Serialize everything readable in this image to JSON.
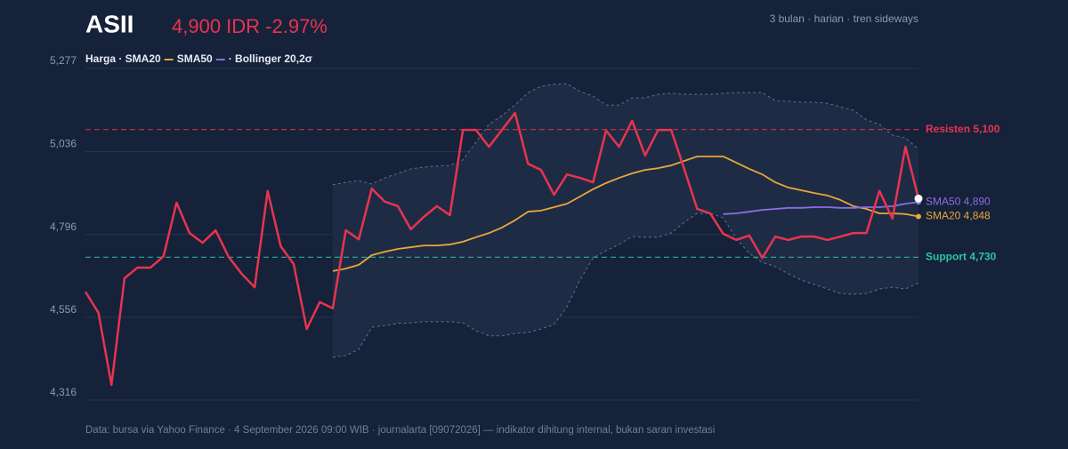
{
  "chart_data": {
    "type": "line",
    "title": "ASII",
    "headline": "4,900 IDR -2.97%",
    "subtitle": "3 bulan · harian · tren sideways",
    "legend_items": [
      "Harga · SMA20",
      "SMA50",
      "· Bollinger 20,2σ"
    ],
    "footer": "Data: bursa via Yahoo Finance · 4 September 2026 09:00 WIB · journalarta [09072026] — indikator dihitung internal, bukan saran investasi",
    "ylim": [
      4316,
      5277
    ],
    "yticks": [
      {
        "value": 4316,
        "label": "4,316"
      },
      {
        "value": 4556,
        "label": "4,556"
      },
      {
        "value": 4796,
        "label": "4,796"
      },
      {
        "value": 5036,
        "label": "5,036"
      },
      {
        "value": 5277,
        "label": "5,277"
      }
    ],
    "grid": true,
    "series": [
      {
        "name": "Harga",
        "color": "#e8344e",
        "values": [
          4630,
          4569,
          4360,
          4669,
          4700,
          4700,
          4733,
          4888,
          4800,
          4772,
          4808,
          4731,
          4682,
          4643,
          4922,
          4762,
          4710,
          4522,
          4600,
          4582,
          4808,
          4782,
          4929,
          4891,
          4878,
          4811,
          4847,
          4878,
          4852,
          5099,
          5099,
          5050,
          5099,
          5148,
          5001,
          4983,
          4911,
          4970,
          4960,
          4947,
          5097,
          5050,
          5125,
          5025,
          5099,
          5099,
          4986,
          4870,
          4857,
          4798,
          4780,
          4793,
          4728,
          4790,
          4780,
          4790,
          4790,
          4780,
          4790,
          4800,
          4800,
          4922,
          4842,
          5050,
          4900
        ]
      },
      {
        "name": "SMA20",
        "color": "#e8a838",
        "end_label": "SMA20 4,848",
        "values": [
          null,
          null,
          null,
          null,
          null,
          null,
          null,
          null,
          null,
          null,
          null,
          null,
          null,
          null,
          null,
          null,
          null,
          null,
          null,
          4690,
          4697,
          4708,
          4736,
          4746,
          4754,
          4759,
          4764,
          4764,
          4767,
          4775,
          4788,
          4800,
          4816,
          4837,
          4862,
          4865,
          4875,
          4885,
          4906,
          4927,
          4945,
          4960,
          4973,
          4983,
          4988,
          4996,
          5009,
          5022,
          5022,
          5022,
          5004,
          4986,
          4970,
          4947,
          4932,
          4924,
          4916,
          4909,
          4896,
          4878,
          4870,
          4857,
          4857,
          4855,
          4848
        ]
      },
      {
        "name": "SMA50",
        "color": "#8b6fe0",
        "end_label": "SMA50 4,890",
        "values": [
          null,
          null,
          null,
          null,
          null,
          null,
          null,
          null,
          null,
          null,
          null,
          null,
          null,
          null,
          null,
          null,
          null,
          null,
          null,
          null,
          null,
          null,
          null,
          null,
          null,
          null,
          null,
          null,
          null,
          null,
          null,
          null,
          null,
          null,
          null,
          null,
          null,
          null,
          null,
          null,
          null,
          null,
          null,
          null,
          null,
          null,
          null,
          null,
          null,
          4855,
          4857,
          4862,
          4867,
          4870,
          4873,
          4873,
          4875,
          4875,
          4873,
          4873,
          4875,
          4875,
          4878,
          4885,
          4890
        ]
      }
    ],
    "band": {
      "name": "Bollinger 20,2σ",
      "color": "#5a7196",
      "fill": "#1e2b45",
      "upper": [
        null,
        null,
        null,
        null,
        null,
        null,
        null,
        null,
        null,
        null,
        null,
        null,
        null,
        null,
        null,
        null,
        null,
        null,
        null,
        4940,
        4947,
        4952,
        4942,
        4960,
        4973,
        4986,
        4991,
        4994,
        4996,
        5012,
        5063,
        5115,
        5140,
        5171,
        5207,
        5225,
        5231,
        5233,
        5210,
        5197,
        5171,
        5171,
        5192,
        5192,
        5202,
        5205,
        5202,
        5202,
        5202,
        5205,
        5207,
        5207,
        5207,
        5184,
        5182,
        5179,
        5179,
        5176,
        5166,
        5156,
        5128,
        5115,
        5084,
        5076,
        5043
      ],
      "lower": [
        null,
        null,
        null,
        null,
        null,
        null,
        null,
        null,
        null,
        null,
        null,
        null,
        null,
        null,
        null,
        null,
        null,
        null,
        null,
        4440,
        4445,
        4463,
        4527,
        4532,
        4538,
        4540,
        4543,
        4543,
        4543,
        4540,
        4517,
        4502,
        4502,
        4509,
        4512,
        4522,
        4535,
        4587,
        4664,
        4728,
        4749,
        4767,
        4790,
        4788,
        4788,
        4800,
        4831,
        4857,
        4857,
        4844,
        4785,
        4741,
        4715,
        4703,
        4682,
        4664,
        4651,
        4638,
        4625,
        4623,
        4625,
        4638,
        4643,
        4638,
        4656
      ]
    },
    "levels": [
      {
        "label": "Resisten 5,100",
        "value": 5100,
        "color": "#e8344e"
      },
      {
        "label": "Support 4,730",
        "value": 4730,
        "color": "#2ec4a0"
      }
    ]
  }
}
